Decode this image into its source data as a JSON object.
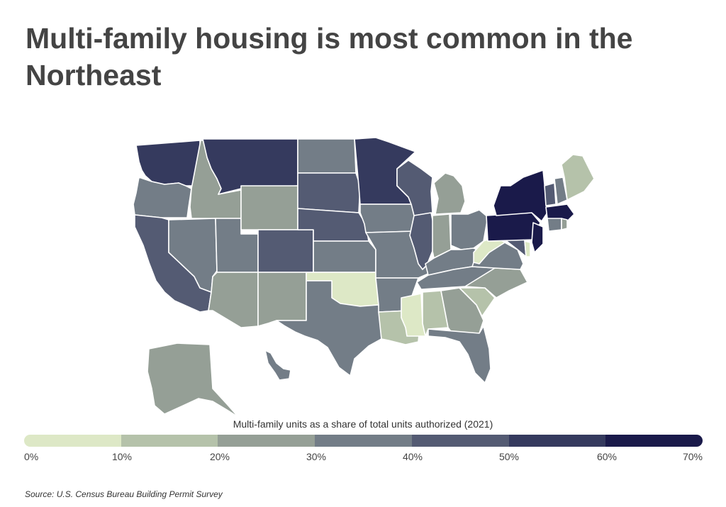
{
  "title": "Multi-family housing is most common in the Northeast",
  "legend": {
    "title": "Multi-family units as a share of total units authorized (2021)",
    "ticks": [
      "0%",
      "10%",
      "20%",
      "30%",
      "40%",
      "50%",
      "60%",
      "70%"
    ],
    "bins": [
      {
        "range": "0-10",
        "color": "#dde8c6"
      },
      {
        "range": "10-20",
        "color": "#b5c2aa"
      },
      {
        "range": "20-30",
        "color": "#959f96"
      },
      {
        "range": "30-40",
        "color": "#737d87"
      },
      {
        "range": "40-50",
        "color": "#545b73"
      },
      {
        "range": "50-60",
        "color": "#353a5e"
      },
      {
        "range": "60-70",
        "color": "#1a1a4a"
      }
    ]
  },
  "source": "Source:  U.S. Census Bureau Building Permit Survey",
  "map_data": {
    "type": "choropleth",
    "region": "United States",
    "metric": "Multi-family units as a share of total units authorized (2021)",
    "state_bins": {
      "WA": 5,
      "OR": 3,
      "CA": 4,
      "ID": 2,
      "NV": 3,
      "UT": 3,
      "AZ": 2,
      "MT": 5,
      "WY": 2,
      "CO": 4,
      "NM": 2,
      "ND": 3,
      "SD": 4,
      "NE": 4,
      "KS": 3,
      "OK": 0,
      "TX": 3,
      "MN": 5,
      "IA": 3,
      "MO": 3,
      "AR": 3,
      "LA": 1,
      "WI": 4,
      "IL": 4,
      "MI": 2,
      "IN": 2,
      "OH": 3,
      "KY": 3,
      "TN": 3,
      "MS": 0,
      "AL": 1,
      "GA": 2,
      "FL": 3,
      "SC": 1,
      "NC": 2,
      "VA": 3,
      "WV": 0,
      "MD": 4,
      "DE": 0,
      "PA": 6,
      "NY": 6,
      "NJ": 6,
      "VT": 4,
      "NH": 3,
      "ME": 1,
      "MA": 6,
      "CT": 3,
      "RI": 2,
      "AK": 2,
      "HI": 3
    }
  }
}
